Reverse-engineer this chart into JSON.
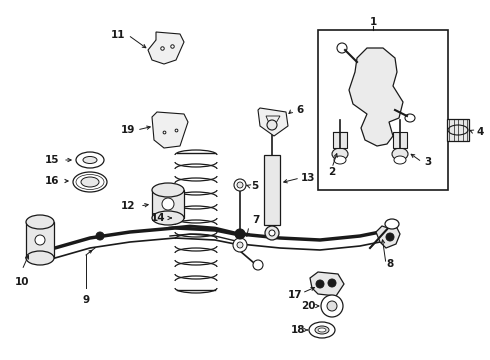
{
  "bg_color": "#ffffff",
  "line_color": "#1a1a1a",
  "fig_w": 4.9,
  "fig_h": 3.6,
  "dpi": 100
}
